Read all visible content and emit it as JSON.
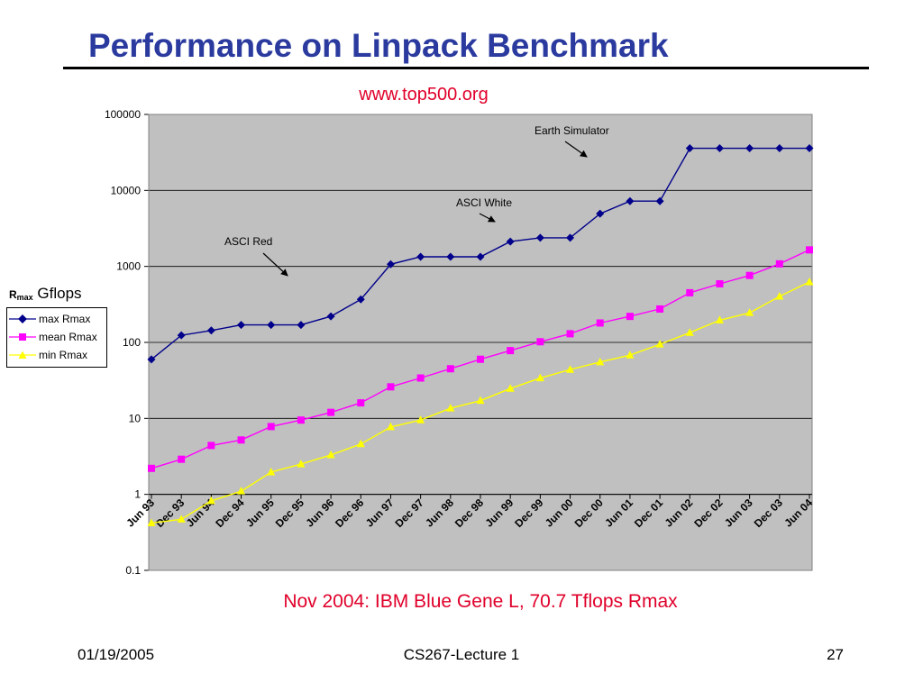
{
  "slide": {
    "title": "Performance on Linpack Benchmark",
    "source": "www.top500.org",
    "footnote": "Nov 2004: IBM Blue Gene L, 70.7 Tflops Rmax"
  },
  "footer": {
    "date": "01/19/2005",
    "course": "CS267-Lecture 1",
    "page": "27"
  },
  "chart_data": {
    "type": "line",
    "title": "",
    "xlabel": "",
    "ylabel": {
      "symbol": "R",
      "subscript": "max",
      "unit": "Gflops"
    },
    "yscale": "log",
    "ylim": [
      0.1,
      100000
    ],
    "yticks": [
      "100000",
      "10000",
      "1000",
      "100",
      "10",
      "1",
      "0.1"
    ],
    "grid": true,
    "legend_position": "left",
    "background_color": "#c0c0c0",
    "categories": [
      "Jun 93",
      "Dec 93",
      "Jun 94",
      "Dec 94",
      "Jun 95",
      "Dec 95",
      "Jun 96",
      "Dec 96",
      "Jun 97",
      "Dec 97",
      "Jun 98",
      "Dec 98",
      "Jun 99",
      "Dec 99",
      "Jun 00",
      "Dec 00",
      "Jun 01",
      "Dec 01",
      "Jun 02",
      "Dec 02",
      "Jun 03",
      "Dec 03",
      "Jun 04"
    ],
    "series": [
      {
        "name": "max Rmax",
        "color": "#00008b",
        "marker": "diamond",
        "values": [
          59.7,
          124,
          143.4,
          170,
          170,
          170,
          220,
          368,
          1068,
          1338,
          1338,
          1338,
          2121,
          2379,
          2379,
          4938,
          7226,
          7226,
          35860,
          35860,
          35860,
          35860,
          35860
        ]
      },
      {
        "name": "mean Rmax",
        "color": "#ff00ff",
        "marker": "square",
        "values": [
          2.2,
          2.9,
          4.4,
          5.2,
          7.8,
          9.5,
          12,
          16,
          26,
          34,
          45,
          60,
          78,
          102,
          130,
          180,
          220,
          275,
          450,
          590,
          760,
          1080,
          1650
        ]
      },
      {
        "name": "min Rmax",
        "color": "#ffff00",
        "marker": "triangle",
        "values": [
          0.42,
          0.47,
          0.82,
          1.1,
          1.96,
          2.5,
          3.3,
          4.6,
          7.7,
          9.5,
          13.6,
          17.1,
          24.7,
          33.9,
          43.8,
          55.1,
          67.8,
          94.3,
          134.3,
          196,
          245,
          403,
          624
        ]
      }
    ],
    "annotations": [
      {
        "text": "Earth Simulator"
      },
      {
        "text": "ASCI White"
      },
      {
        "text": "ASCI Red"
      }
    ]
  }
}
